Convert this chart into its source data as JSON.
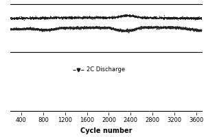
{
  "xlabel": "Cycle number",
  "xlim": [
    200,
    3700
  ],
  "xticks": [
    400,
    800,
    1200,
    1600,
    2000,
    2400,
    2800,
    3200,
    3600
  ],
  "background_color": "#ffffff",
  "line_color": "#1a1a1a",
  "legend_label": "2C Discharge",
  "noise_seed": 42,
  "n_points": 3600,
  "upper_base": 0.72,
  "lower_base": 0.58,
  "ylim": [
    0.3,
    0.9
  ]
}
